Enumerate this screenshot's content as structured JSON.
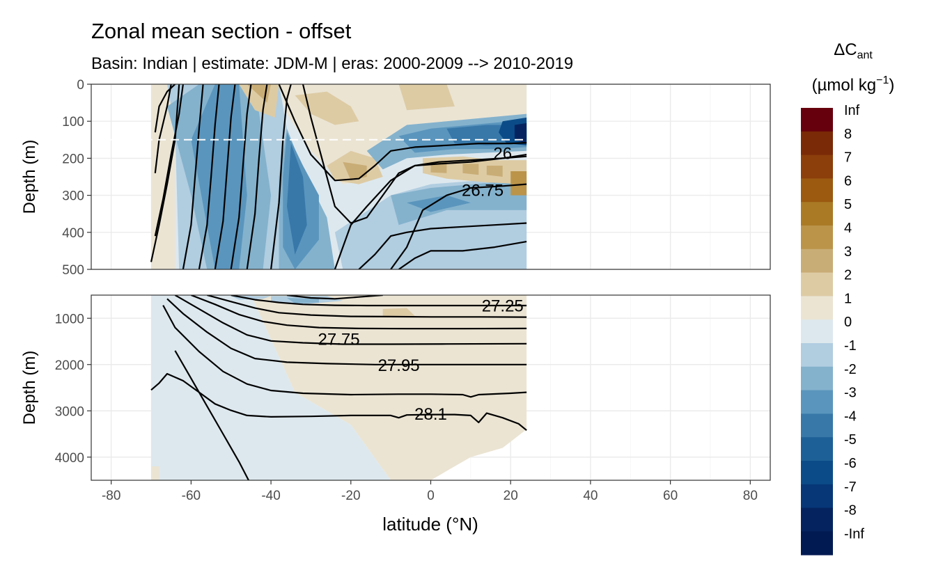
{
  "chart_data": {
    "type": "heatmap",
    "title": "Zonal mean section - offset",
    "subtitle": "Basin: Indian | estimate: JDM-M | eras: 2000-2009 --> 2010-2019",
    "xlabel": "latitude (°N)",
    "ylabel": "Depth (m)",
    "xlim": [
      -85,
      85
    ],
    "x_ticks": [
      "-80",
      "-60",
      "-40",
      "-20",
      "0",
      "20",
      "40",
      "60",
      "80"
    ],
    "x_tick_values": [
      -80,
      -60,
      -40,
      -20,
      0,
      20,
      40,
      60,
      80
    ],
    "data_lat_range": [
      -70,
      24
    ],
    "legend": {
      "title_main": "ΔC",
      "title_sub": "ant",
      "units": "(µmol kg",
      "units_sup": "−1",
      "units_end": ")",
      "labels": [
        "Inf",
        "8",
        "7",
        "6",
        "5",
        "4",
        "3",
        "2",
        "1",
        "0",
        "-1",
        "-2",
        "-3",
        "-4",
        "-5",
        "-6",
        "-7",
        "-8",
        "-Inf"
      ],
      "colors": [
        "#67000d",
        "#7a2a07",
        "#8c3f0a",
        "#9b5a10",
        "#aa7a25",
        "#bb944a",
        "#c9ad76",
        "#ddcba4",
        "#ebe4d3",
        "#dde8ee",
        "#b1cde0",
        "#84b2cd",
        "#5a95bd",
        "#3878a9",
        "#1d6097",
        "#0b4c88",
        "#073777",
        "#05245f",
        "#021a52"
      ]
    },
    "panels": [
      {
        "name": "upper",
        "ylim": [
          0,
          500
        ],
        "y_ticks": [
          "0",
          "100",
          "200",
          "300",
          "400",
          "500"
        ],
        "y_tick_values": [
          0,
          100,
          200,
          300,
          400,
          500
        ],
        "reference_depth": 150,
        "contour_labels": [
          {
            "text": "26",
            "lat": 18,
            "depth": 185
          },
          {
            "text": "26.75",
            "lat": 13,
            "depth": 285
          }
        ],
        "isopycnals": [
          [
            [
              -70,
              480
            ],
            [
              -68,
              380
            ],
            [
              -66,
              270
            ],
            [
              -64,
              150
            ],
            [
              -63,
              0
            ]
          ],
          [
            [
              -69,
              410
            ],
            [
              -67,
              310
            ],
            [
              -65,
              190
            ],
            [
              -63,
              80
            ],
            [
              -62,
              0
            ]
          ],
          [
            [
              -69,
              240
            ],
            [
              -68,
              150
            ],
            [
              -66,
              60
            ],
            [
              -65,
              0
            ]
          ],
          [
            [
              -69,
              130
            ],
            [
              -68,
              60
            ],
            [
              -66,
              20
            ],
            [
              -64,
              0
            ]
          ],
          [
            [
              -62,
              500
            ],
            [
              -60,
              380
            ],
            [
              -59,
              250
            ],
            [
              -58,
              120
            ],
            [
              -57,
              0
            ]
          ],
          [
            [
              -58,
              500
            ],
            [
              -56,
              380
            ],
            [
              -55,
              250
            ],
            [
              -54,
              110
            ],
            [
              -53,
              0
            ]
          ],
          [
            [
              -54,
              500
            ],
            [
              -52,
              370
            ],
            [
              -51,
              230
            ],
            [
              -50,
              90
            ],
            [
              -49,
              0
            ]
          ],
          [
            [
              -50,
              500
            ],
            [
              -48,
              360
            ],
            [
              -47,
              220
            ],
            [
              -46,
              80
            ],
            [
              -45,
              0
            ]
          ],
          [
            [
              -46,
              500
            ],
            [
              -44,
              350
            ],
            [
              -43,
              200
            ],
            [
              -42,
              70
            ],
            [
              -41,
              0
            ]
          ],
          [
            [
              -40,
              500
            ],
            [
              -38,
              320
            ],
            [
              -37,
              150
            ],
            [
              -36,
              40
            ],
            [
              -35,
              0
            ]
          ],
          [
            [
              -24,
              500
            ],
            [
              -22,
              440
            ],
            [
              -20,
              380
            ],
            [
              -16,
              330
            ],
            [
              -10,
              260
            ],
            [
              -4,
              220
            ],
            [
              2,
              210
            ],
            [
              10,
              205
            ],
            [
              18,
              200
            ],
            [
              24,
              195
            ]
          ],
          [
            [
              -32,
              0
            ],
            [
              -30,
              90
            ],
            [
              -27,
              210
            ],
            [
              -24,
              330
            ],
            [
              -20,
              375
            ],
            [
              -16,
              360
            ],
            [
              -12,
              300
            ],
            [
              -8,
              240
            ],
            [
              -4,
              220
            ],
            [
              2,
              215
            ],
            [
              10,
              210
            ],
            [
              18,
              200
            ],
            [
              24,
              190
            ]
          ],
          [
            [
              -38,
              0
            ],
            [
              -34,
              100
            ],
            [
              -30,
              190
            ],
            [
              -24,
              260
            ],
            [
              -18,
              255
            ],
            [
              -14,
              220
            ],
            [
              -10,
              180
            ],
            [
              -4,
              170
            ],
            [
              4,
              165
            ],
            [
              12,
              160
            ],
            [
              20,
              160
            ],
            [
              24,
              158
            ]
          ],
          [
            [
              -18,
              500
            ],
            [
              -14,
              460
            ],
            [
              -10,
              410
            ],
            [
              -6,
              400
            ],
            [
              0,
              390
            ],
            [
              8,
              385
            ],
            [
              16,
              380
            ],
            [
              24,
              375
            ]
          ],
          [
            [
              -10,
              500
            ],
            [
              -6,
              440
            ],
            [
              -2,
              340
            ],
            [
              4,
              300
            ],
            [
              10,
              280
            ],
            [
              18,
              275
            ],
            [
              24,
              270
            ]
          ],
          [
            [
              -8,
              500
            ],
            [
              -4,
              470
            ],
            [
              0,
              450
            ],
            [
              8,
              450
            ],
            [
              16,
              440
            ],
            [
              24,
              425
            ]
          ]
        ]
      },
      {
        "name": "lower",
        "ylim": [
          500,
          4500
        ],
        "y_ticks": [
          "1000",
          "2000",
          "3000",
          "4000"
        ],
        "y_tick_values": [
          1000,
          2000,
          3000,
          4000
        ],
        "contour_labels": [
          {
            "text": "27.25",
            "lat": 18,
            "depth": 720
          },
          {
            "text": "27.75",
            "lat": -23,
            "depth": 1440
          },
          {
            "text": "27.95",
            "lat": -8,
            "depth": 2000
          },
          {
            "text": "28.1",
            "lat": 0,
            "depth": 3060
          }
        ],
        "isopycnals": [
          [
            [
              -36,
              500
            ],
            [
              -30,
              560
            ],
            [
              -24,
              580
            ],
            [
              -18,
              540
            ],
            [
              -12,
              500
            ]
          ],
          [
            [
              -50,
              500
            ],
            [
              -44,
              600
            ],
            [
              -38,
              660
            ],
            [
              -32,
              700
            ],
            [
              -24,
              720
            ],
            [
              -16,
              725
            ],
            [
              -8,
              725
            ],
            [
              0,
              725
            ],
            [
              10,
              725
            ],
            [
              24,
              725
            ]
          ],
          [
            [
              -56,
              500
            ],
            [
              -50,
              640
            ],
            [
              -44,
              780
            ],
            [
              -38,
              880
            ],
            [
              -30,
              930
            ],
            [
              -20,
              960
            ],
            [
              -10,
              965
            ],
            [
              0,
              970
            ],
            [
              12,
              970
            ],
            [
              24,
              975
            ]
          ],
          [
            [
              -60,
              500
            ],
            [
              -54,
              700
            ],
            [
              -48,
              920
            ],
            [
              -42,
              1070
            ],
            [
              -36,
              1150
            ],
            [
              -28,
              1200
            ],
            [
              -18,
              1220
            ],
            [
              -6,
              1225
            ],
            [
              8,
              1225
            ],
            [
              24,
              1220
            ]
          ],
          [
            [
              -64,
              500
            ],
            [
              -58,
              800
            ],
            [
              -52,
              1100
            ],
            [
              -46,
              1360
            ],
            [
              -40,
              1490
            ],
            [
              -32,
              1530
            ],
            [
              -22,
              1560
            ],
            [
              -10,
              1560
            ],
            [
              4,
              1555
            ],
            [
              24,
              1550
            ]
          ],
          [
            [
              -66,
              580
            ],
            [
              -62,
              900
            ],
            [
              -56,
              1300
            ],
            [
              -50,
              1650
            ],
            [
              -44,
              1870
            ],
            [
              -36,
              1950
            ],
            [
              -26,
              1980
            ],
            [
              -14,
              2000
            ],
            [
              0,
              2000
            ],
            [
              24,
              2000
            ]
          ],
          [
            [
              -67,
              720
            ],
            [
              -64,
              1200
            ],
            [
              -58,
              1720
            ],
            [
              -52,
              2150
            ],
            [
              -46,
              2420
            ],
            [
              -40,
              2560
            ],
            [
              -32,
              2620
            ],
            [
              -20,
              2650
            ],
            [
              -8,
              2640
            ],
            [
              0,
              2640
            ],
            [
              8,
              2650
            ],
            [
              10,
              2700
            ],
            [
              12,
              2650
            ],
            [
              20,
              2620
            ],
            [
              24,
              2600
            ]
          ],
          [
            [
              -70,
              2550
            ],
            [
              -68,
              2400
            ],
            [
              -66,
              2200
            ],
            [
              -62,
              2350
            ],
            [
              -58,
              2600
            ],
            [
              -54,
              2850
            ],
            [
              -50,
              2990
            ],
            [
              -46,
              3100
            ],
            [
              -40,
              3130
            ],
            [
              -30,
              3120
            ],
            [
              -20,
              3100
            ],
            [
              -10,
              3100
            ],
            [
              -8,
              3150
            ],
            [
              -6,
              3090
            ],
            [
              0,
              3080
            ],
            [
              6,
              3080
            ],
            [
              10,
              3100
            ],
            [
              12,
              3250
            ],
            [
              14,
              3050
            ],
            [
              18,
              3150
            ],
            [
              22,
              3280
            ],
            [
              24,
              3420
            ]
          ],
          [
            [
              -64,
              1700
            ],
            [
              -60,
              2300
            ],
            [
              -56,
              2900
            ],
            [
              -52,
              3500
            ],
            [
              -48,
              4100
            ],
            [
              -45,
              4600
            ]
          ]
        ]
      }
    ]
  }
}
